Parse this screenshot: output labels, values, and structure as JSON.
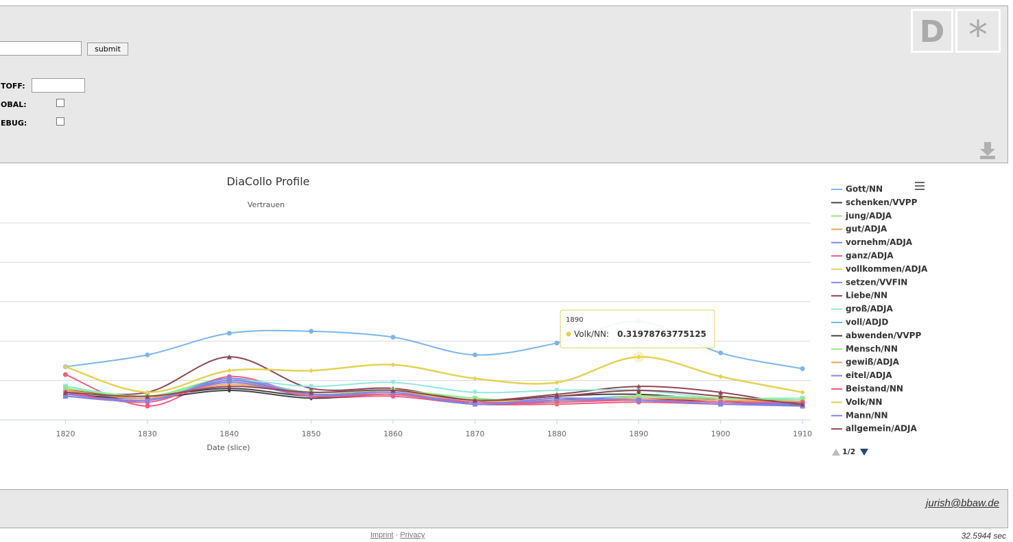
{
  "form": {
    "submit": "submit",
    "fields": [
      {
        "label": "TOFF:"
      },
      {
        "label": "OBAL:"
      },
      {
        "label": "EBUG:"
      }
    ]
  },
  "logo": [
    "D",
    "*"
  ],
  "chart_data": {
    "type": "line",
    "title": "DiaCollo Profile",
    "subtitle": "Vertrauen",
    "x_label": "Date (slice)",
    "x": [
      1820,
      1830,
      1840,
      1850,
      1860,
      1870,
      1880,
      1890,
      1900,
      1910
    ],
    "xlim": [
      1812,
      1911
    ],
    "xticks": [
      1820,
      1830,
      1840,
      1850,
      1860,
      1870,
      1880,
      1890,
      1900,
      1910
    ],
    "ylim": [
      0,
      1
    ],
    "yticks": [
      0,
      0.2,
      0.4,
      0.6,
      0.8,
      1
    ],
    "grid": true,
    "legend": "right",
    "legend_page": "1/2",
    "tooltip": {
      "label": "Volk/NN:"
    },
    "series": [
      {
        "name": "Gott/NN",
        "color": "#7cb5ec",
        "values": [
          0.27,
          0.33,
          0.44,
          0.45,
          0.42,
          0.33,
          0.39,
          0.5,
          0.34,
          0.26
        ]
      },
      {
        "name": "schenken/VVPP",
        "color": "#434348",
        "values": [
          0.14,
          0.12,
          0.16,
          0.12,
          0.13,
          0.09,
          0.12,
          0.13,
          0.1,
          0.07
        ]
      },
      {
        "name": "jung/ADJA",
        "color": "#90ed7d",
        "values": [
          0.17,
          0.12,
          0.21,
          0.13,
          0.15,
          0.1,
          0.09,
          0.12,
          0.11,
          0.11
        ]
      },
      {
        "name": "gut/ADJA",
        "color": "#f7a35c",
        "values": [
          0.16,
          0.11,
          0.2,
          0.13,
          0.14,
          0.09,
          0.1,
          0.11,
          0.1,
          0.1
        ]
      },
      {
        "name": "vornehm/ADJA",
        "color": "#8085e9",
        "values": [
          0.14,
          0.1,
          0.19,
          0.12,
          0.14,
          0.08,
          0.09,
          0.1,
          0.09,
          0.08
        ]
      },
      {
        "name": "ganz/ADJA",
        "color": "#f15c80",
        "values": [
          0.23,
          0.07,
          0.22,
          0.12,
          0.12,
          0.08,
          0.08,
          0.09,
          0.08,
          0.08
        ]
      },
      {
        "name": "vollkommen/ADJA",
        "color": "#e4d354",
        "values": [
          0.15,
          0.11,
          0.19,
          0.13,
          0.14,
          0.09,
          0.1,
          0.11,
          0.1,
          0.09
        ]
      },
      {
        "name": "setzen/VVFIN",
        "color": "#8085e8",
        "values": [
          0.12,
          0.1,
          0.21,
          0.13,
          0.14,
          0.08,
          0.11,
          0.1,
          0.08,
          0.08
        ]
      },
      {
        "name": "Liebe/NN",
        "color": "#8d4653",
        "values": [
          0.15,
          0.14,
          0.32,
          0.16,
          0.16,
          0.1,
          0.13,
          0.17,
          0.14,
          0.07
        ]
      },
      {
        "name": "groß/ADJA",
        "color": "#91e8e1",
        "values": [
          0.17,
          0.12,
          0.2,
          0.17,
          0.19,
          0.14,
          0.15,
          0.15,
          0.11,
          0.11
        ]
      },
      {
        "name": "voll/ADJD",
        "color": "#7cb5ec",
        "values": [
          0.15,
          0.11,
          0.2,
          0.14,
          0.15,
          0.09,
          0.1,
          0.12,
          0.1,
          0.09
        ]
      },
      {
        "name": "abwenden/VVPP",
        "color": "#434348",
        "values": [
          0.13,
          0.11,
          0.15,
          0.11,
          0.13,
          0.08,
          0.1,
          0.11,
          0.09,
          0.08
        ]
      },
      {
        "name": "Mensch/NN",
        "color": "#90ed7d",
        "values": [
          0.16,
          0.12,
          0.19,
          0.14,
          0.15,
          0.11,
          0.09,
          0.12,
          0.11,
          0.1
        ]
      },
      {
        "name": "gewiß/ADJA",
        "color": "#f7a35c",
        "values": [
          0.15,
          0.11,
          0.18,
          0.13,
          0.14,
          0.1,
          0.1,
          0.11,
          0.1,
          0.09
        ]
      },
      {
        "name": "eitel/ADJA",
        "color": "#8085e9",
        "values": [
          0.13,
          0.1,
          0.19,
          0.12,
          0.13,
          0.08,
          0.1,
          0.1,
          0.09,
          0.08
        ]
      },
      {
        "name": "Beistand/NN",
        "color": "#f15c80",
        "values": [
          0.14,
          0.09,
          0.2,
          0.12,
          0.13,
          0.09,
          0.09,
          0.1,
          0.09,
          0.09
        ]
      },
      {
        "name": "Volk/NN",
        "color": "#e4d354",
        "values": [
          0.27,
          0.14,
          0.25,
          0.25,
          0.28,
          0.21,
          0.19,
          0.31978763775125,
          0.22,
          0.14
        ]
      },
      {
        "name": "Mann/NN",
        "color": "#8085e8",
        "values": [
          0.12,
          0.1,
          0.2,
          0.13,
          0.14,
          0.08,
          0.11,
          0.1,
          0.08,
          0.07
        ]
      },
      {
        "name": "allgemein/ADJA",
        "color": "#8d4653",
        "values": [
          0.14,
          0.12,
          0.17,
          0.14,
          0.15,
          0.1,
          0.12,
          0.15,
          0.12,
          0.08
        ]
      }
    ]
  },
  "footer": {
    "contact": "jurish@bbaw.de",
    "links": [
      "Imprint",
      "Privacy"
    ],
    "separator": "·",
    "timing": "32.5944 sec"
  }
}
